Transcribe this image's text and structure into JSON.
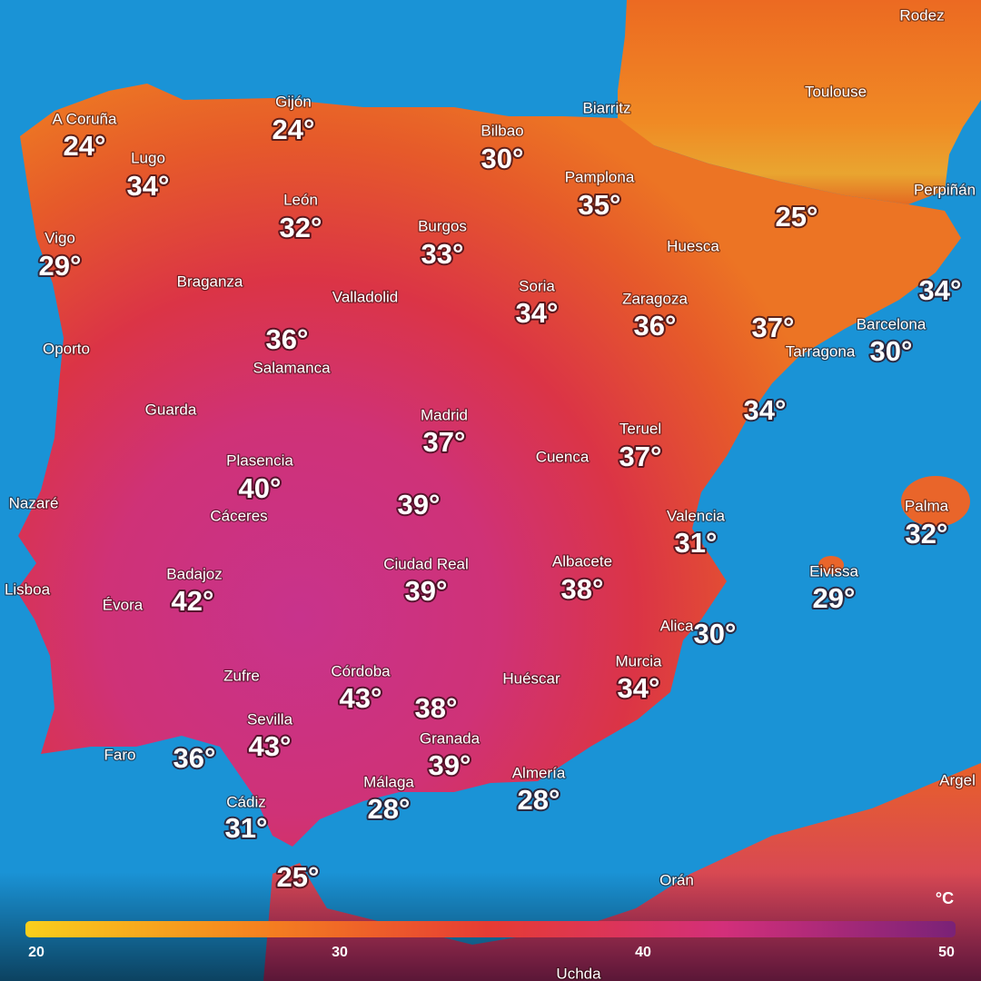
{
  "place_names": [
    "Rodez",
    "Toulouse",
    "Biarritz",
    "Perpiñán",
    "A Coruña",
    "Gijón",
    "Bilbao",
    "Lugo",
    "Pamplona",
    "León",
    "Burgos",
    "Vigo",
    "Huesca",
    "Braganza",
    "Soria",
    "Zaragoza",
    "Valladolid",
    "Barcelona",
    "Oporto",
    "Tarragona",
    "Salamanca",
    "Guarda",
    "Madrid",
    "Teruel",
    "Cuenca",
    "Plasencia",
    "Nazaré",
    "Palma",
    "Cáceres",
    "Valencia",
    "Ciudad Real",
    "Albacete",
    "Eivissa",
    "Badajoz",
    "Lisboa",
    "Évora",
    "Alica",
    "Zufre",
    "Córdoba",
    "Huéscar",
    "Murcia",
    "Sevilla",
    "Granada",
    "Faro",
    "Málaga",
    "Almería",
    "Cádiz",
    "Orán",
    "Argel",
    "Uchda"
  ],
  "temperatures": [
    "24°",
    "24°",
    "30°",
    "34°",
    "35°",
    "32°",
    "33°",
    "29°",
    "25°",
    "34°",
    "34°",
    "36°",
    "37°",
    "30°",
    "36°",
    "34°",
    "37°",
    "37°",
    "40°",
    "39°",
    "32°",
    "31°",
    "39°",
    "38°",
    "29°",
    "42°",
    "30°",
    "34°",
    "43°",
    "38°",
    "43°",
    "36°",
    "39°",
    "28°",
    "28°",
    "31°",
    "25°"
  ],
  "legend": {
    "unit": "°C",
    "min": 20,
    "max": 50,
    "ticks": [
      20,
      30,
      40,
      50
    ],
    "colors": [
      "#f9cf1c",
      "#f5821f",
      "#e63b34",
      "#d32f7a",
      "#7a2277"
    ]
  }
}
